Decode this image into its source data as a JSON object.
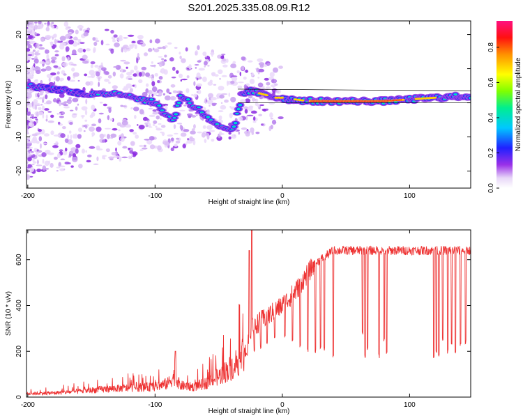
{
  "title": "S201.2025.335.08.09.R12",
  "chart_data": [
    {
      "type": "heatmap",
      "name": "spectrogram",
      "xlabel": "Height of straight line (km)",
      "ylabel": "Frequency (Hz)",
      "xlim": [
        -201,
        148
      ],
      "ylim": [
        -25,
        24
      ],
      "xticks": [
        -200,
        -100,
        0,
        100
      ],
      "yticks": [
        -20,
        -10,
        0,
        10,
        20
      ],
      "ridge": {
        "x": [
          -200,
          -180,
          -160,
          -150,
          -140,
          -130,
          -120,
          -110,
          -100,
          -90,
          -85,
          -80,
          -75,
          -70,
          -65,
          -60,
          -55,
          -50,
          -45,
          -40,
          -38,
          -35,
          -32,
          -30,
          -25,
          -20,
          -15,
          -10,
          -5,
          0,
          5,
          10,
          20,
          40,
          60,
          80,
          100,
          120,
          148
        ],
        "y": [
          5,
          4,
          3,
          2.5,
          2.5,
          3,
          2,
          1,
          0,
          -4,
          -5,
          2,
          1,
          -1,
          -2,
          -4,
          -6,
          -7,
          -8,
          -8,
          -7,
          -3,
          2,
          3,
          3.5,
          3,
          2.5,
          2,
          1.5,
          1.5,
          1,
          1,
          0.5,
          0.5,
          0.5,
          0.5,
          1,
          1.5,
          2
        ]
      },
      "colorbar": {
        "label": "Normalized spectral amplitude",
        "range": [
          0.0,
          0.95
        ],
        "ticks": [
          "0.0",
          "0.2",
          "0.4",
          "0.6",
          "0.8"
        ],
        "tick_values": [
          0.0,
          0.2,
          0.4,
          0.6,
          0.8
        ]
      }
    },
    {
      "type": "line",
      "name": "snr",
      "xlabel": "Height of straight line (km)",
      "ylabel": "SNR (10 * v/v)",
      "xlim": [
        -201,
        148
      ],
      "ylim": [
        0,
        730
      ],
      "xticks": [
        -200,
        -100,
        0,
        100
      ],
      "yticks": [
        0,
        200,
        400,
        600
      ],
      "color": "#ee3333",
      "envelope": {
        "x": [
          -201,
          -180,
          -160,
          -140,
          -120,
          -100,
          -90,
          -85,
          -80,
          -70,
          -60,
          -50,
          -45,
          -40,
          -35,
          -30,
          -25,
          -24,
          -20,
          -15,
          -10,
          -5,
          0,
          5,
          10,
          15,
          20,
          25,
          30,
          35,
          40,
          50,
          60,
          80,
          100,
          120,
          140,
          148
        ],
        "y": [
          15,
          18,
          25,
          35,
          40,
          45,
          60,
          90,
          50,
          45,
          60,
          90,
          110,
          130,
          160,
          200,
          250,
          300,
          320,
          340,
          360,
          380,
          400,
          430,
          460,
          500,
          540,
          580,
          600,
          620,
          640,
          640,
          640,
          640,
          640,
          640,
          640,
          640
        ]
      },
      "dropouts": [
        {
          "x": -38,
          "y": 120
        },
        {
          "x": -33,
          "y": 160
        },
        {
          "x": -28,
          "y": 190
        },
        {
          "x": -22,
          "y": 200
        },
        {
          "x": -17,
          "y": 220
        },
        {
          "x": -12,
          "y": 240
        },
        {
          "x": -6,
          "y": 260
        },
        {
          "x": 2,
          "y": 270
        },
        {
          "x": 8,
          "y": 250
        },
        {
          "x": 14,
          "y": 220
        },
        {
          "x": 20,
          "y": 200
        },
        {
          "x": 26,
          "y": 200
        },
        {
          "x": 30,
          "y": 220
        },
        {
          "x": 33,
          "y": 210
        },
        {
          "x": 40,
          "y": 180
        },
        {
          "x": 63,
          "y": 280
        },
        {
          "x": 65,
          "y": 180
        },
        {
          "x": 67,
          "y": 210
        },
        {
          "x": 76,
          "y": 180
        },
        {
          "x": 80,
          "y": 250
        },
        {
          "x": 82,
          "y": 190
        },
        {
          "x": 119,
          "y": 180
        },
        {
          "x": 121,
          "y": 200
        },
        {
          "x": 123,
          "y": 190
        },
        {
          "x": 126,
          "y": 250
        },
        {
          "x": 130,
          "y": 200
        },
        {
          "x": 133,
          "y": 230
        },
        {
          "x": 136,
          "y": 200
        },
        {
          "x": 140,
          "y": 230
        },
        {
          "x": 144,
          "y": 240
        }
      ],
      "spikes": [
        {
          "x": -24,
          "y": 730
        },
        {
          "x": -26,
          "y": 640
        },
        {
          "x": -84,
          "y": 200
        }
      ]
    }
  ]
}
